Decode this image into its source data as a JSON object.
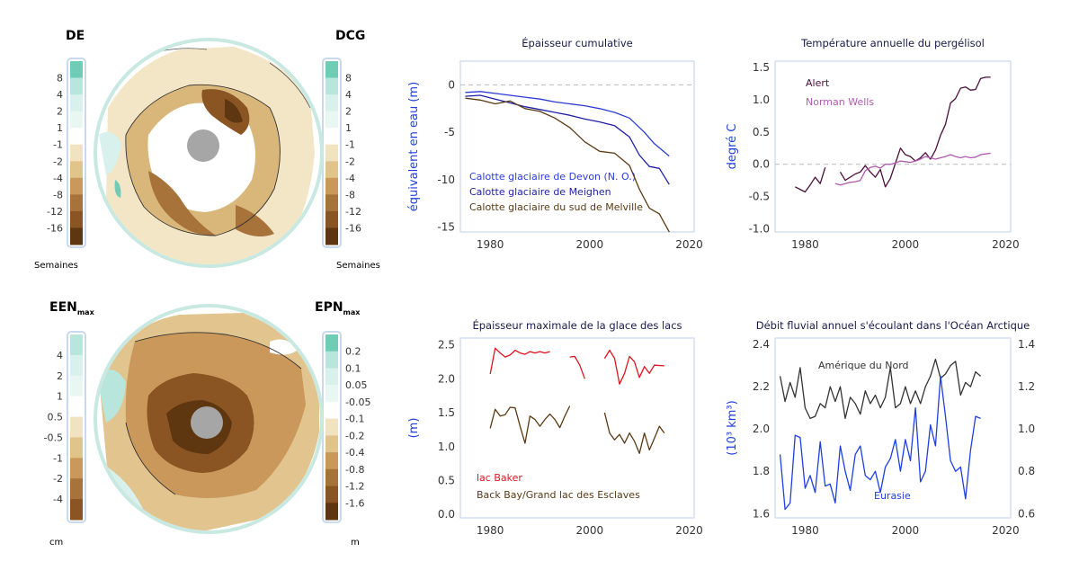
{
  "maps": [
    {
      "left_label": "DE",
      "left_sub": "",
      "right_label": "DCG",
      "right_sub": "",
      "left_ticks": [
        "8",
        "4",
        "2",
        "1",
        "-1",
        "-2",
        "-4",
        "-8",
        "-12",
        "-16"
      ],
      "right_ticks": [
        "8",
        "4",
        "2",
        "1",
        "-1",
        "-2",
        "-4",
        "-8",
        "-12",
        "-16"
      ],
      "left_unit": "Semaines",
      "right_unit": "Semaines"
    },
    {
      "left_label": "EEN",
      "left_sub": "max",
      "right_label": "EPN",
      "right_sub": "max",
      "left_ticks": [
        "4",
        "2",
        "1",
        "0.5",
        "-0.5",
        "-1",
        "-2",
        "-4"
      ],
      "right_ticks": [
        "0.2",
        "0.1",
        "0.05",
        "-0.05",
        "-0.1",
        "-0.2",
        "-0.4",
        "-0.8",
        "-1.2",
        "-1.6"
      ],
      "left_unit": "cm",
      "right_unit": "m"
    }
  ],
  "colors": {
    "frame": "#c9d9ee",
    "ring": "#c8e8e2",
    "zero_line": "#bbbbbb",
    "map_scale": [
      "#6fcdb6",
      "#b9e6dc",
      "#d9f1ec",
      "#e9f7f3",
      "#ffffff",
      "#f2e3c0",
      "#e0c48a",
      "#c9985a",
      "#a8733a",
      "#8a5523",
      "#5e3710"
    ]
  },
  "chart_data": [
    {
      "id": "ice-caps",
      "type": "line",
      "title": "Épaisseur cumulative",
      "xlabel": "",
      "ylabel": "équivalent en eau (m)",
      "xlim": [
        1974,
        2021
      ],
      "ylim": [
        -15.5,
        2.5
      ],
      "xticks": [
        1980,
        2000,
        2020
      ],
      "yticks": [
        0,
        -5,
        -10,
        -15
      ],
      "zero_line": true,
      "series": [
        {
          "name": "Calotte glaciaire de Devon (N. O.)",
          "color": "#2b3cd6",
          "x": [
            1975,
            1978,
            1981,
            1984,
            1987,
            1990,
            1993,
            1996,
            1999,
            2002,
            2005,
            2008,
            2011,
            2013,
            2016
          ],
          "y": [
            -0.8,
            -0.7,
            -0.9,
            -1.1,
            -1.3,
            -1.5,
            -1.8,
            -2.0,
            -2.2,
            -2.5,
            -2.9,
            -3.5,
            -5.0,
            -6.2,
            -7.5
          ]
        },
        {
          "name": "Calotte glaciaire de Meighen",
          "color": "#1f1fa8",
          "x": [
            1975,
            1978,
            1981,
            1984,
            1987,
            1990,
            1993,
            1996,
            1999,
            2002,
            2005,
            2008,
            2010,
            2012,
            2014,
            2016
          ],
          "y": [
            -1.2,
            -1.1,
            -1.5,
            -1.9,
            -2.3,
            -2.6,
            -2.9,
            -3.2,
            -3.6,
            -3.9,
            -4.3,
            -5.5,
            -7.4,
            -8.6,
            -8.8,
            -10.5
          ]
        },
        {
          "name": "Calotte glaciaire du sud de Melville",
          "color": "#5a3a12",
          "x": [
            1975,
            1978,
            1981,
            1984,
            1987,
            1990,
            1993,
            1996,
            1999,
            2002,
            2005,
            2008,
            2010,
            2012,
            2014,
            2016
          ],
          "y": [
            -1.4,
            -1.6,
            -2.0,
            -1.7,
            -2.5,
            -2.8,
            -3.5,
            -4.5,
            -6.0,
            -7.0,
            -7.2,
            -8.5,
            -11.0,
            -13.0,
            -13.6,
            -15.5
          ]
        }
      ]
    },
    {
      "id": "permafrost",
      "type": "line",
      "title": "Température annuelle du pergélisol",
      "xlabel": "",
      "ylabel": "degré C",
      "xlim": [
        1974,
        2021
      ],
      "ylim": [
        -1.05,
        1.6
      ],
      "xticks": [
        1980,
        2000,
        2020
      ],
      "yticks": [
        1.5,
        1.0,
        0.5,
        0.0,
        -0.5,
        -1.0
      ],
      "ytick_labels": [
        "1.5",
        "1.0",
        "0.5",
        "0.0",
        "-0.5",
        "-1.0"
      ],
      "zero_line": true,
      "series": [
        {
          "name": "Alert",
          "color": "#4a0f3a",
          "x": [
            1978,
            1980,
            1981,
            1982,
            1983,
            1984
          ],
          "y": [
            -0.35,
            -0.43,
            -0.32,
            -0.2,
            -0.3,
            -0.05
          ]
        },
        {
          "name": "Alert",
          "color": "#4a0f3a",
          "x": [
            1987,
            1988,
            1990,
            1991,
            1992,
            1993,
            1994,
            1995,
            1996,
            1997,
            1999,
            2000,
            2001,
            2002,
            2003,
            2004,
            2005,
            2006,
            2007,
            2008,
            2009,
            2010,
            2011,
            2012,
            2013,
            2014,
            2015,
            2016,
            2017
          ],
          "y": [
            -0.12,
            -0.25,
            -0.15,
            -0.12,
            -0.02,
            -0.12,
            -0.2,
            -0.08,
            -0.35,
            -0.22,
            0.25,
            0.15,
            0.12,
            0.05,
            0.1,
            0.18,
            0.08,
            0.22,
            0.45,
            0.62,
            0.95,
            1.02,
            1.18,
            1.2,
            1.15,
            1.16,
            1.33,
            1.35,
            1.35
          ]
        },
        {
          "name": "Norman Wells",
          "color": "#b05ab0",
          "x": [
            1986,
            1987,
            1989,
            1990,
            1991,
            1992,
            1993,
            1994,
            1995,
            1996,
            1997,
            1998,
            1999,
            2000,
            2001,
            2002,
            2003,
            2004,
            2005,
            2006,
            2007,
            2008,
            2009,
            2010,
            2011,
            2012,
            2013,
            2014,
            2015,
            2016,
            2017
          ],
          "y": [
            -0.3,
            -0.32,
            -0.28,
            -0.27,
            -0.25,
            -0.1,
            -0.05,
            -0.03,
            -0.06,
            0.0,
            0.0,
            0.02,
            0.05,
            0.04,
            0.03,
            0.05,
            0.08,
            0.12,
            0.1,
            0.08,
            0.1,
            0.12,
            0.15,
            0.12,
            0.1,
            0.12,
            0.1,
            0.11,
            0.15,
            0.16,
            0.17
          ]
        }
      ],
      "legend": [
        {
          "label": "Alert",
          "color": "#4a0f3a"
        },
        {
          "label": "Norman Wells",
          "color": "#b05ab0"
        }
      ]
    },
    {
      "id": "lake-ice",
      "type": "line",
      "title": "Épaisseur maximale de la glace des lacs",
      "xlabel": "",
      "ylabel": "(m)",
      "xlim": [
        1974,
        2021
      ],
      "ylim": [
        -0.05,
        2.6
      ],
      "xticks": [
        1980,
        2000,
        2020
      ],
      "yticks": [
        2.5,
        2.0,
        1.5,
        1.0,
        0.5,
        0.0
      ],
      "ytick_labels": [
        "2.5",
        "2.0",
        "1.5",
        "1.0",
        "0.5",
        "0.0"
      ],
      "zero_line": false,
      "series": [
        {
          "name": "lac Baker",
          "color": "#e0141e",
          "x": [
            1980,
            1981,
            1982,
            1983,
            1984,
            1985,
            1986,
            1987,
            1988,
            1989,
            1990,
            1991,
            1992
          ],
          "y": [
            2.07,
            2.45,
            2.38,
            2.32,
            2.35,
            2.42,
            2.38,
            2.36,
            2.4,
            2.38,
            2.4,
            2.38,
            2.4
          ]
        },
        {
          "name": "lac Baker",
          "color": "#e0141e",
          "x": [
            1996,
            1997,
            1998,
            1999
          ],
          "y": [
            2.32,
            2.33,
            2.2,
            2.0
          ]
        },
        {
          "name": "lac Baker",
          "color": "#e0141e",
          "x": [
            2003,
            2004,
            2005,
            2006,
            2007,
            2008,
            2009,
            2010,
            2011,
            2012,
            2013,
            2015
          ],
          "y": [
            2.3,
            2.42,
            2.3,
            1.92,
            2.08,
            2.33,
            2.25,
            2.02,
            2.18,
            2.08,
            2.2,
            2.19
          ]
        },
        {
          "name": "Back Bay/Grand lac des Esclaves",
          "color": "#5a3a12",
          "x": [
            1980,
            1981,
            1982,
            1983,
            1984,
            1985,
            1986,
            1987,
            1988,
            1989,
            1990,
            1991,
            1992,
            1993,
            1994,
            1995,
            1996
          ],
          "y": [
            1.27,
            1.55,
            1.45,
            1.47,
            1.58,
            1.57,
            1.3,
            1.05,
            1.45,
            1.4,
            1.3,
            1.4,
            1.48,
            1.4,
            1.28,
            1.45,
            1.6
          ]
        },
        {
          "name": "Back Bay/Grand lac des Esclaves",
          "color": "#5a3a12",
          "x": [
            2003,
            2004,
            2005,
            2006,
            2007,
            2008,
            2009,
            2010,
            2011,
            2012,
            2013,
            2014,
            2015
          ],
          "y": [
            1.5,
            1.2,
            1.1,
            1.18,
            1.05,
            1.2,
            1.08,
            0.9,
            1.2,
            0.95,
            1.12,
            1.3,
            1.2
          ]
        }
      ],
      "legend": [
        {
          "label": "lac Baker",
          "color": "#e0141e"
        },
        {
          "label": "Back Bay/Grand lac des Esclaves",
          "color": "#5a3a12"
        }
      ]
    },
    {
      "id": "river-discharge",
      "type": "line",
      "title": "Débit fluvial annuel s'écoulant dans l'Océan Arctique",
      "xlabel": "",
      "ylabel": "(10³ km³)",
      "xlim": [
        1974,
        2021
      ],
      "ylim": [
        1.58,
        2.43
      ],
      "ylim_right": [
        0.58,
        1.43
      ],
      "xticks": [
        1980,
        2000,
        2020
      ],
      "yticks": [
        2.4,
        2.2,
        2.0,
        1.8,
        1.6
      ],
      "ytick_labels": [
        "2.4",
        "2.2",
        "2.0",
        "1.8",
        "1.6"
      ],
      "yticks_right": [
        1.4,
        1.2,
        1.0,
        0.8,
        0.6
      ],
      "ytick_labels_right": [
        "1.4",
        "1.2",
        "1.0",
        "0.8",
        "0.6"
      ],
      "zero_line": false,
      "series": [
        {
          "name": "Amérique du Nord",
          "color": "#333333",
          "axis": "right",
          "x": [
            1975,
            1976,
            1977,
            1978,
            1979,
            1980,
            1981,
            1982,
            1983,
            1984,
            1985,
            1986,
            1987,
            1988,
            1989,
            1990,
            1991,
            1992,
            1993,
            1994,
            1995,
            1996,
            1997,
            1998,
            1999,
            2000,
            2001,
            2002,
            2003,
            2004,
            2005,
            2006,
            2007,
            2008,
            2009,
            2010,
            2011,
            2012,
            2013,
            2014,
            2015
          ],
          "y": [
            1.25,
            1.13,
            1.22,
            1.15,
            1.29,
            1.1,
            1.05,
            1.06,
            1.12,
            1.1,
            1.2,
            1.13,
            1.2,
            1.05,
            1.15,
            1.12,
            1.07,
            1.18,
            1.12,
            1.16,
            1.1,
            1.15,
            1.29,
            1.1,
            1.12,
            1.2,
            1.12,
            1.18,
            1.12,
            1.2,
            1.25,
            1.33,
            1.24,
            1.26,
            1.3,
            1.32,
            1.16,
            1.22,
            1.2,
            1.27,
            1.25
          ]
        },
        {
          "name": "Eurasie",
          "color": "#1f3fe0",
          "axis": "left",
          "x": [
            1975,
            1976,
            1977,
            1978,
            1979,
            1980,
            1981,
            1982,
            1983,
            1984,
            1985,
            1986,
            1987,
            1988,
            1989,
            1990,
            1991,
            1992,
            1993,
            1994,
            1995,
            1996,
            1997,
            1998,
            1999,
            2000,
            2001,
            2002,
            2003,
            2004,
            2005,
            2006,
            2007,
            2008,
            2009,
            2010,
            2011,
            2012,
            2013,
            2014,
            2015
          ],
          "y": [
            1.88,
            1.62,
            1.65,
            1.97,
            1.96,
            1.72,
            1.78,
            1.7,
            1.94,
            1.73,
            1.74,
            1.65,
            1.92,
            1.8,
            1.71,
            1.88,
            1.92,
            1.78,
            1.76,
            1.8,
            1.7,
            1.82,
            1.86,
            1.95,
            1.8,
            1.95,
            1.85,
            2.1,
            1.75,
            1.8,
            2.02,
            1.92,
            2.25,
            2.06,
            1.85,
            1.8,
            1.82,
            1.67,
            1.9,
            2.06,
            2.05
          ]
        }
      ],
      "legend": [
        {
          "label": "Amérique du Nord",
          "color": "#333333"
        },
        {
          "label": "Eurasie",
          "color": "#1f3fe0"
        }
      ]
    }
  ]
}
